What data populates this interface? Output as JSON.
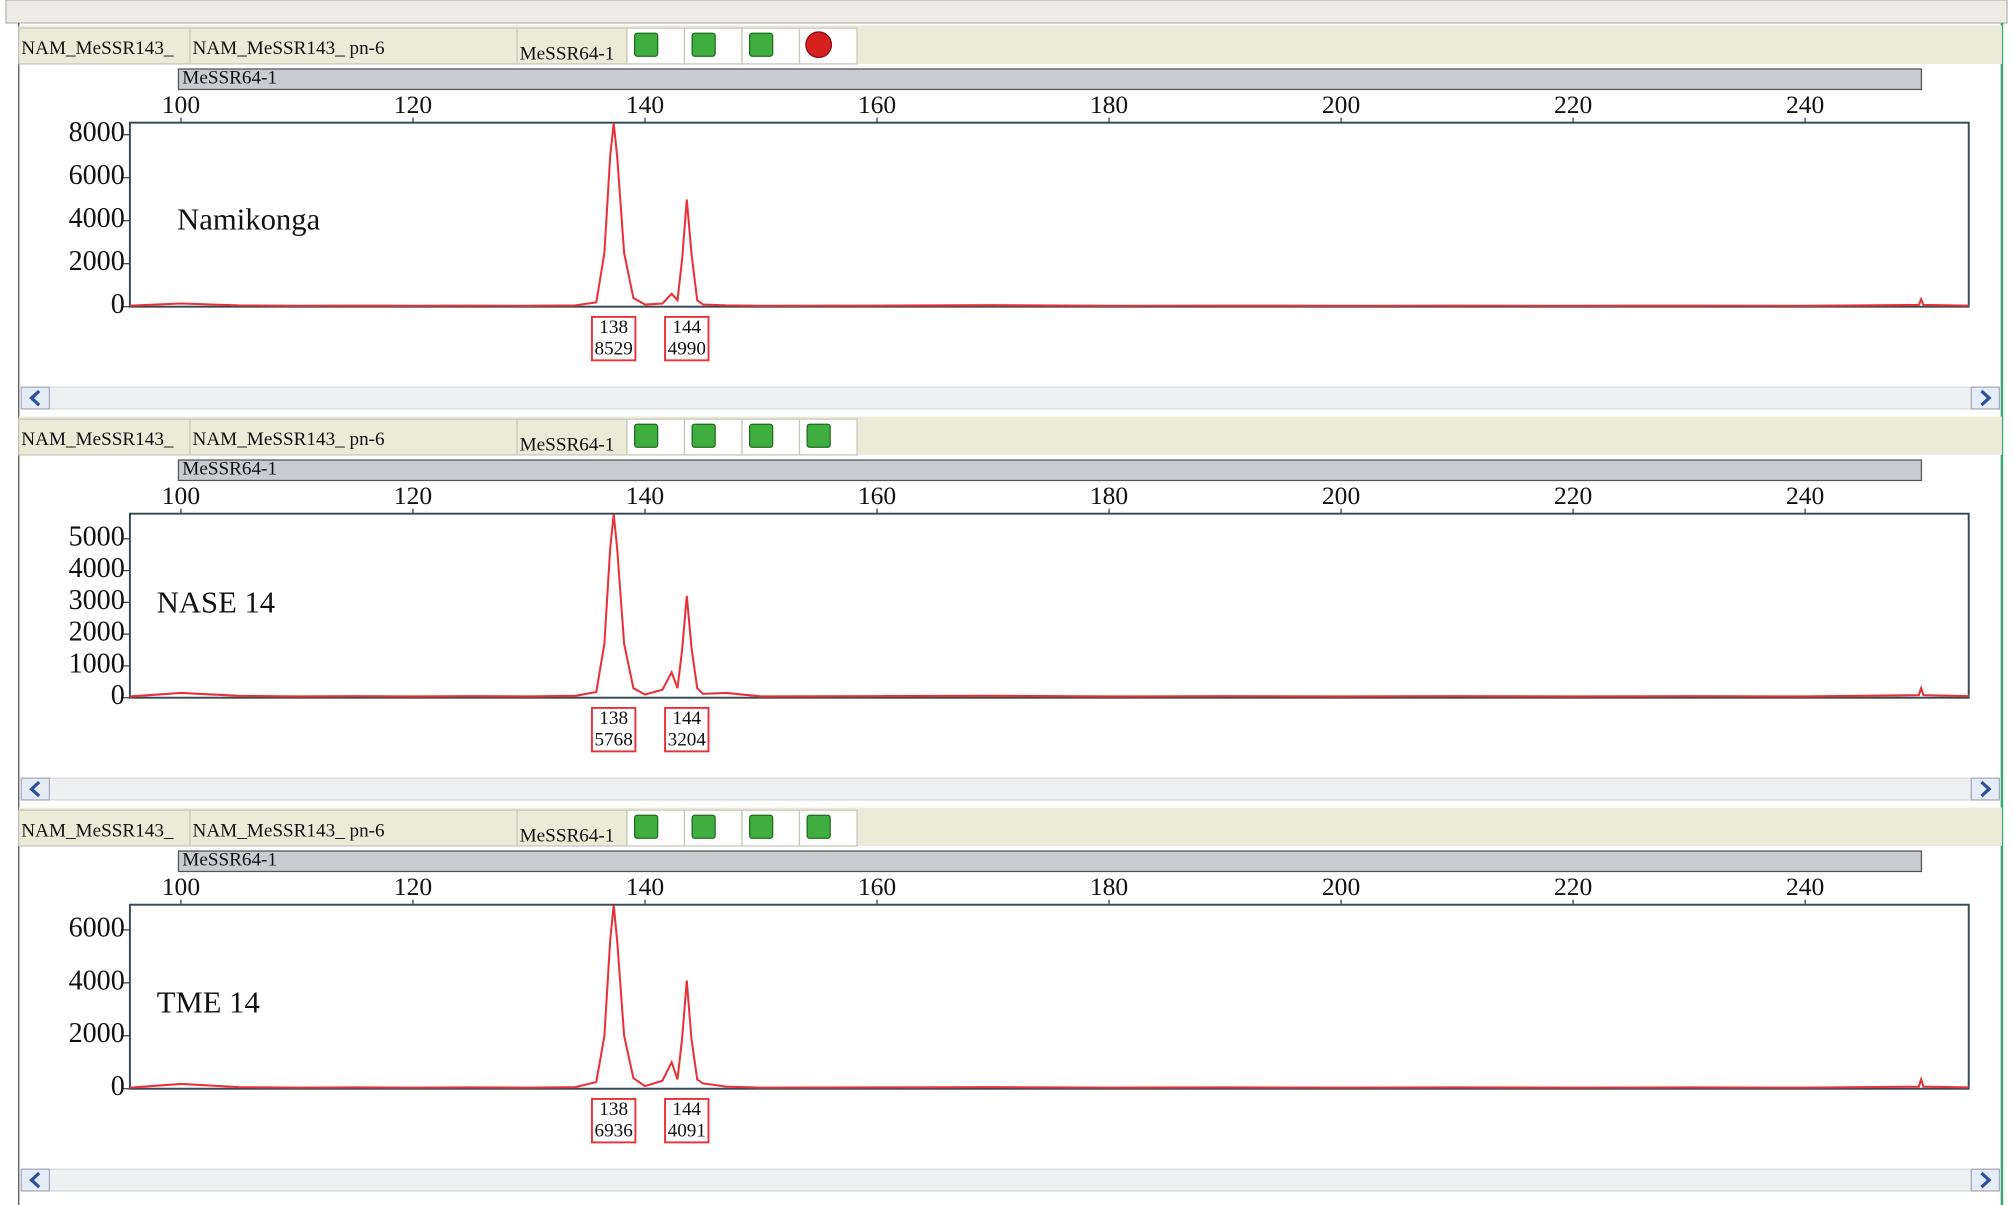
{
  "panels": [
    {
      "cells": [
        "NAM_MeSSR143_",
        "NAM_MeSSR143_ pn-6"
      ],
      "marker": "MeSSR64-1",
      "bin": "MeSSR64-1"
    },
    {
      "cells": [
        "NAM_MeSSR143_",
        "NAM_MeSSR143_ pn-6"
      ],
      "marker": "MeSSR64-1",
      "bin": "MeSSR64-1"
    },
    {
      "cells": [
        "NAM_MeSSR143_",
        "NAM_MeSSR143_ pn-6"
      ],
      "marker": "MeSSR64-1",
      "bin": "MeSSR64-1"
    }
  ],
  "chart_data": [
    {
      "type": "line",
      "annotation": "Namikonga",
      "color": "#e8323a",
      "grid": false,
      "xlim": [
        95.6,
        254.1
      ],
      "xticks": [
        100,
        120,
        140,
        160,
        180,
        200,
        220,
        240
      ],
      "ylim": [
        0,
        8560
      ],
      "yticks": [
        0,
        2000,
        4000,
        6000,
        8000
      ],
      "x": [
        95.6,
        100,
        105,
        110,
        115,
        120,
        125,
        130,
        134,
        135.8,
        136.5,
        137,
        137.3,
        137.6,
        138.2,
        139,
        140,
        141.5,
        142.3,
        142.8,
        143.2,
        143.6,
        144,
        144.5,
        145,
        147,
        150,
        160,
        170,
        180,
        190,
        200,
        210,
        220,
        230,
        240,
        249.8,
        250,
        250.2,
        254.1
      ],
      "values": [
        50,
        150,
        60,
        40,
        50,
        40,
        50,
        40,
        60,
        200,
        2500,
        7000,
        8529,
        7000,
        2500,
        400,
        100,
        150,
        600,
        300,
        2200,
        4990,
        2500,
        300,
        100,
        60,
        40,
        50,
        70,
        40,
        50,
        40,
        50,
        40,
        50,
        40,
        80,
        350,
        80,
        50
      ],
      "peaks": [
        {
          "allele": 138,
          "height": 8529
        },
        {
          "allele": 144,
          "height": 4990
        }
      ]
    },
    {
      "type": "line",
      "annotation": "NASE 14",
      "color": "#e8323a",
      "grid": false,
      "xlim": [
        95.6,
        254.1
      ],
      "xticks": [
        100,
        120,
        140,
        160,
        180,
        200,
        220,
        240
      ],
      "ylim": [
        0,
        5790
      ],
      "yticks": [
        0,
        1000,
        2000,
        3000,
        4000,
        5000
      ],
      "x": [
        95.6,
        100,
        105,
        110,
        115,
        120,
        125,
        130,
        134,
        135.8,
        136.5,
        137,
        137.3,
        137.6,
        138.2,
        139,
        140,
        141.5,
        142.3,
        142.8,
        143.2,
        143.6,
        144,
        144.5,
        145,
        147,
        150,
        160,
        170,
        180,
        190,
        200,
        210,
        220,
        230,
        240,
        249.8,
        250,
        250.2,
        254.1
      ],
      "values": [
        40,
        150,
        60,
        40,
        50,
        40,
        50,
        40,
        60,
        180,
        1700,
        4700,
        5768,
        4700,
        1700,
        300,
        100,
        250,
        800,
        300,
        1500,
        3204,
        1600,
        300,
        120,
        150,
        40,
        50,
        60,
        40,
        50,
        40,
        50,
        40,
        50,
        40,
        80,
        300,
        80,
        50
      ],
      "peaks": [
        {
          "allele": 138,
          "height": 5768
        },
        {
          "allele": 144,
          "height": 3204
        }
      ]
    },
    {
      "type": "line",
      "annotation": "TME 14",
      "color": "#e8323a",
      "grid": false,
      "xlim": [
        95.6,
        254.1
      ],
      "xticks": [
        100,
        120,
        140,
        160,
        180,
        200,
        220,
        240
      ],
      "ylim": [
        0,
        6950
      ],
      "yticks": [
        0,
        2000,
        4000,
        6000
      ],
      "x": [
        95.6,
        100,
        105,
        110,
        115,
        120,
        125,
        130,
        134,
        135.8,
        136.5,
        137,
        137.3,
        137.6,
        138.2,
        139,
        140,
        141.5,
        142.3,
        142.8,
        143.2,
        143.6,
        144,
        144.5,
        145,
        147,
        150,
        160,
        170,
        180,
        190,
        200,
        210,
        220,
        230,
        240,
        249.8,
        250,
        250.2,
        254.1
      ],
      "values": [
        40,
        180,
        60,
        40,
        50,
        40,
        50,
        40,
        60,
        250,
        2000,
        5600,
        6936,
        5600,
        2000,
        400,
        100,
        300,
        1000,
        350,
        1900,
        4091,
        1900,
        350,
        200,
        80,
        40,
        50,
        60,
        40,
        50,
        40,
        50,
        40,
        50,
        40,
        80,
        350,
        80,
        50
      ],
      "peaks": [
        {
          "allele": 138,
          "height": 6936
        },
        {
          "allele": 144,
          "height": 4091
        }
      ]
    }
  ]
}
